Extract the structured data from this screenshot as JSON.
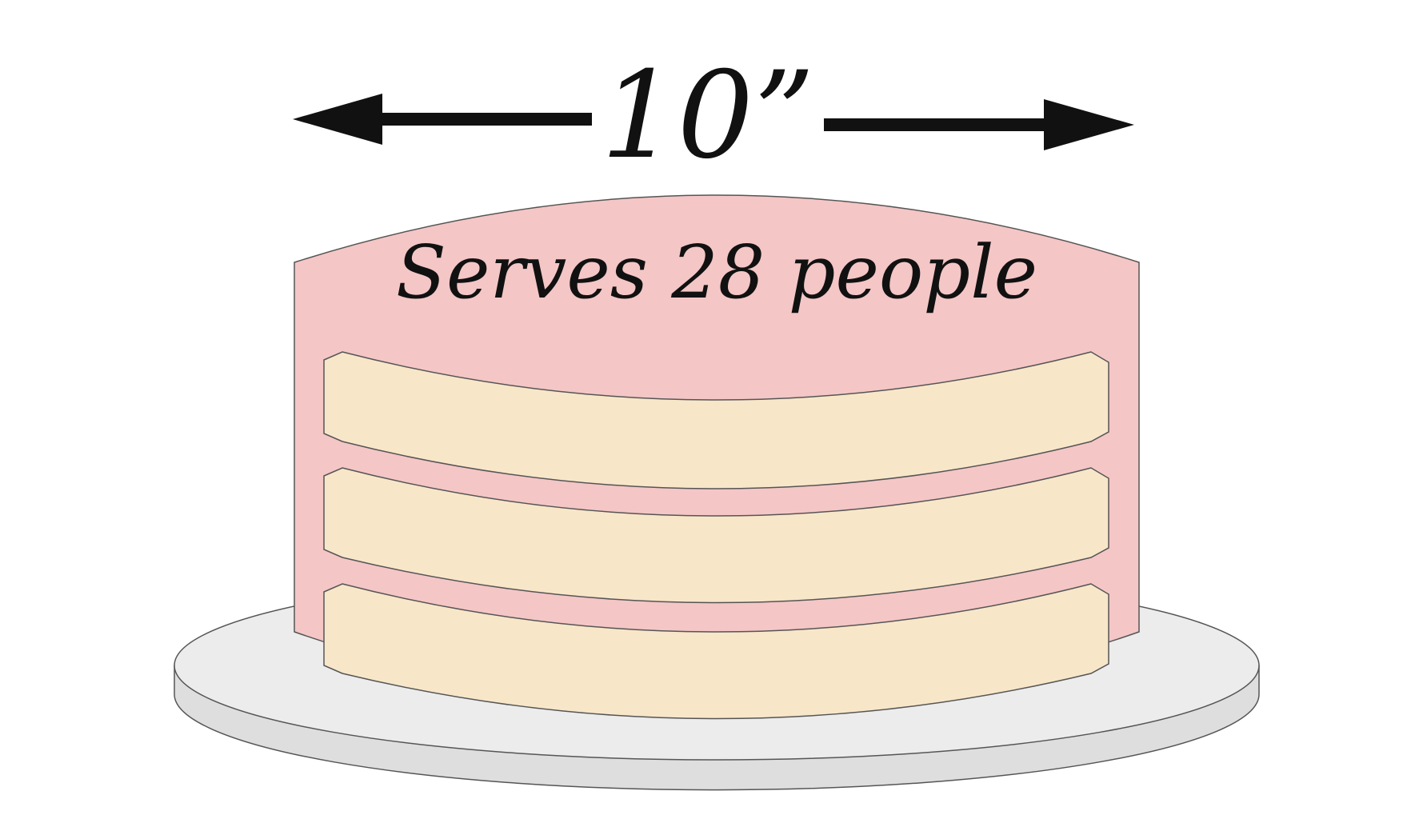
{
  "diagram": {
    "dimension_label": "10”",
    "serving_label": "Serves 28 people"
  },
  "colors": {
    "frosting": "#f4c6c6",
    "cake_layer": "#f8e6c9",
    "board": "#e9e9e9",
    "outline": "#555555",
    "arrow": "#111111",
    "text": "#111111"
  }
}
